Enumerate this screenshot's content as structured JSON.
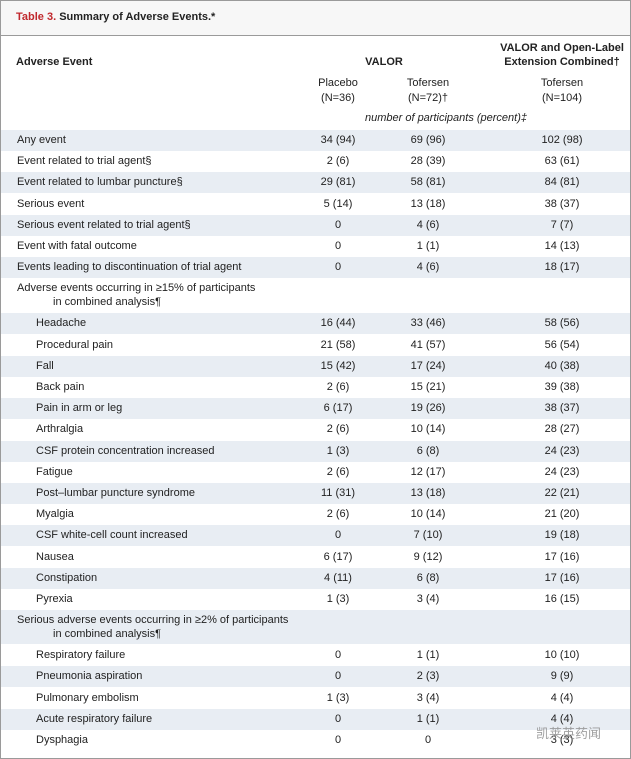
{
  "header": {
    "label": "Table 3.",
    "title": "Summary of Adverse Events.*"
  },
  "columns": {
    "event": "Adverse Event",
    "group_valor": "VALOR",
    "group_combined": "VALOR and Open-Label Extension Combined†",
    "placebo": "Placebo",
    "placebo_n": "(N=36)",
    "tofersen": "Tofersen",
    "tofersen_n": "(N=72)†",
    "combined": "Tofersen",
    "combined_n": "(N=104)",
    "unit": "number of participants (percent)‡"
  },
  "table": {
    "rows": [
      [
        "Any event",
        "34 (94)",
        "69 (96)",
        "102 (98)"
      ],
      [
        "Event related to trial agent§",
        "2 (6)",
        "28 (39)",
        "63 (61)"
      ],
      [
        "Event related to lumbar puncture§",
        "29 (81)",
        "58 (81)",
        "84 (81)"
      ],
      [
        "Serious event",
        "5 (14)",
        "13 (18)",
        "38 (37)"
      ],
      [
        "Serious event related to trial agent§",
        "0",
        "4 (6)",
        "7 (7)"
      ],
      [
        "Event with fatal outcome",
        "0",
        "1 (1)",
        "14 (13)"
      ],
      [
        "Events leading to discontinuation of trial agent",
        "0",
        "4 (6)",
        "18 (17)"
      ]
    ],
    "sections": [
      {
        "heading": [
          "Adverse events occurring in ≥15% of participants",
          "in combined analysis¶"
        ],
        "rows": [
          [
            "Headache",
            "16 (44)",
            "33 (46)",
            "58 (56)"
          ],
          [
            "Procedural pain",
            "21 (58)",
            "41 (57)",
            "56 (54)"
          ],
          [
            "Fall",
            "15 (42)",
            "17 (24)",
            "40 (38)"
          ],
          [
            "Back pain",
            "2 (6)",
            "15 (21)",
            "39 (38)"
          ],
          [
            "Pain in arm or leg",
            "6 (17)",
            "19 (26)",
            "38 (37)"
          ],
          [
            "Arthralgia",
            "2 (6)",
            "10 (14)",
            "28 (27)"
          ],
          [
            "CSF protein concentration increased",
            "1 (3)",
            "6 (8)",
            "24 (23)"
          ],
          [
            "Fatigue",
            "2 (6)",
            "12 (17)",
            "24 (23)"
          ],
          [
            "Post–lumbar puncture syndrome",
            "11 (31)",
            "13 (18)",
            "22 (21)"
          ],
          [
            "Myalgia",
            "2 (6)",
            "10 (14)",
            "21 (20)"
          ],
          [
            "CSF white-cell count increased",
            "0",
            "7 (10)",
            "19 (18)"
          ],
          [
            "Nausea",
            "6 (17)",
            "9 (12)",
            "17 (16)"
          ],
          [
            "Constipation",
            "4 (11)",
            "6 (8)",
            "17 (16)"
          ],
          [
            "Pyrexia",
            "1 (3)",
            "3 (4)",
            "16 (15)"
          ]
        ]
      },
      {
        "heading": [
          "Serious adverse events occurring in ≥2% of participants",
          "in combined analysis¶"
        ],
        "rows": [
          [
            "Respiratory failure",
            "0",
            "1 (1)",
            "10 (10)"
          ],
          [
            "Pneumonia aspiration",
            "0",
            "2 (3)",
            "9 (9)"
          ],
          [
            "Pulmonary embolism",
            "1 (3)",
            "3 (4)",
            "4 (4)"
          ],
          [
            "Acute respiratory failure",
            "0",
            "1 (1)",
            "4 (4)"
          ],
          [
            "Dysphagia",
            "0",
            "0",
            "3 (3)"
          ]
        ]
      }
    ]
  },
  "watermark": "凯莱英药闻"
}
